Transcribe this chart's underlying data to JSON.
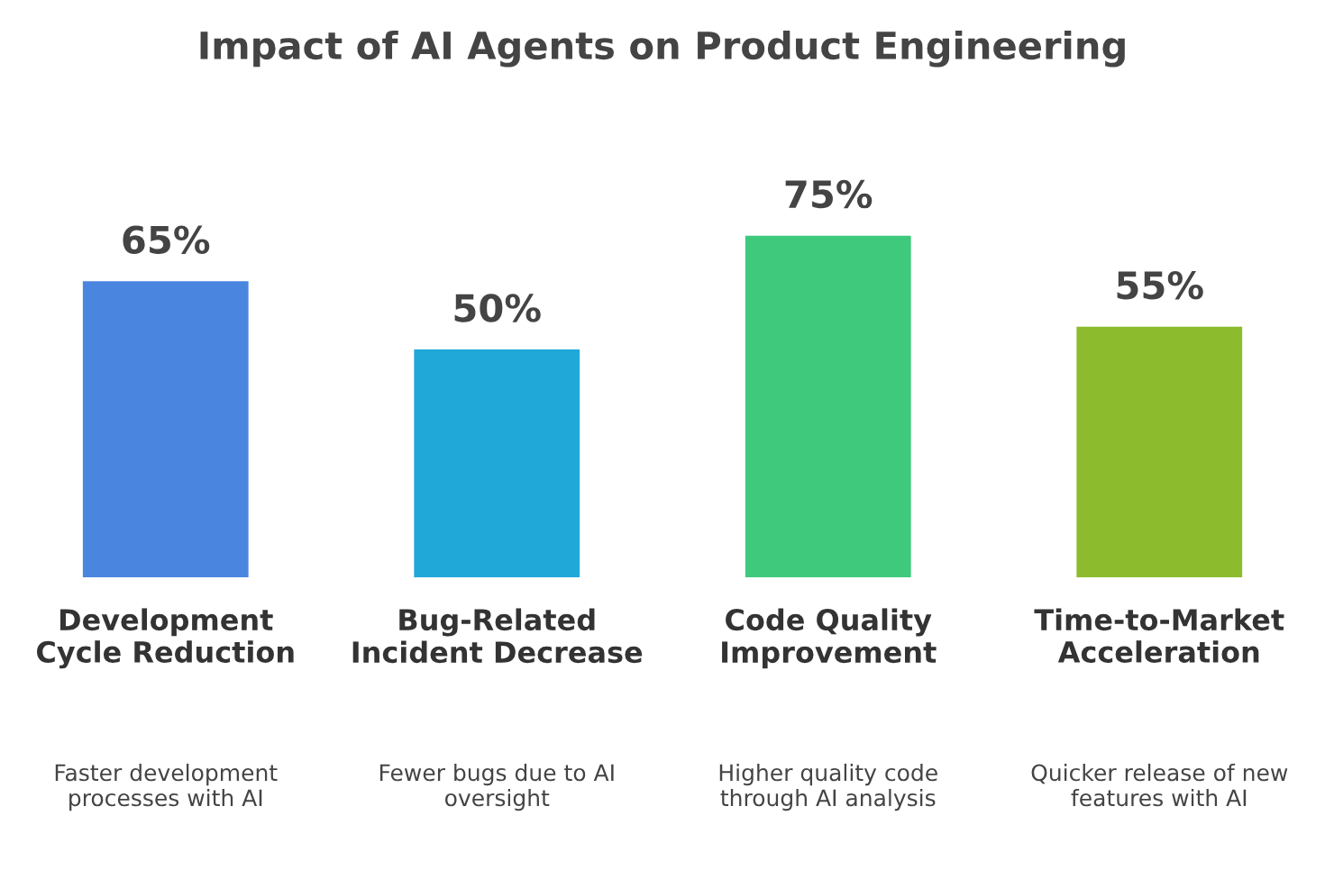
{
  "chart_data": {
    "type": "bar",
    "title": "Impact of AI Agents on Product Engineering",
    "categories": [
      "Development\nCycle Reduction",
      "Bug-Related\nIncident Decrease",
      "Code Quality\nImprovement",
      "Time-to-Market\nAcceleration"
    ],
    "values": [
      65,
      50,
      75,
      55
    ],
    "colors": [
      "#4a86e0",
      "#1fa8d8",
      "#3ec97d",
      "#8cbb2e"
    ],
    "value_labels": [
      "65%",
      "50%",
      "75%",
      "55%"
    ],
    "annotations": [
      "Faster development\nprocesses with AI",
      "Fewer bugs due to AI\noversight",
      "Higher quality code\nthrough AI analysis",
      "Quicker release of new\nfeatures with AI"
    ]
  }
}
